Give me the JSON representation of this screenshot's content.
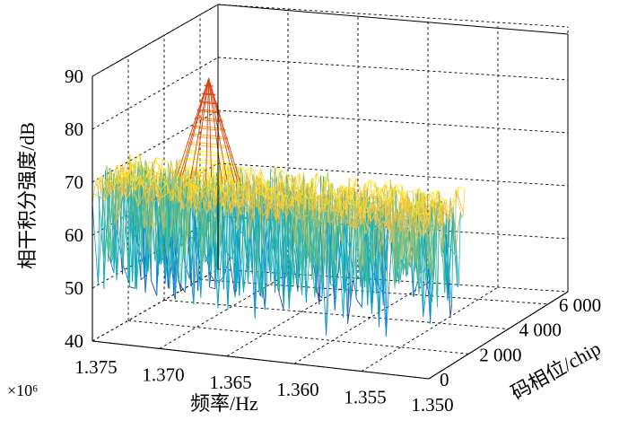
{
  "chart_data": {
    "type": "surface-3d",
    "title": "",
    "x_axis": {
      "label": "频率/Hz",
      "ticks": [
        "1.375",
        "1.370",
        "1.365",
        "1.360",
        "1.355",
        "1.350"
      ],
      "tick_values": [
        1375000,
        1370000,
        1365000,
        1360000,
        1355000,
        1350000
      ],
      "multiplier": "×10⁶",
      "range": [
        1375000,
        1350000
      ]
    },
    "y_axis": {
      "label": "码相位/chip",
      "ticks": [
        "0",
        "2 000",
        "4 000",
        "6 000"
      ],
      "tick_values": [
        0,
        2000,
        4000,
        6000
      ],
      "range": [
        0,
        7000
      ]
    },
    "z_axis": {
      "label": "相干积分强度/dB",
      "ticks": [
        "40",
        "50",
        "60",
        "70",
        "80",
        "90"
      ],
      "tick_values": [
        40,
        50,
        60,
        70,
        80,
        90
      ],
      "range": [
        40,
        90
      ]
    },
    "grid": true,
    "colormap": "parula",
    "noise_floor": {
      "min_db": 51,
      "max_db": 72
    },
    "peak": {
      "frequency_hz": 1368000,
      "code_phase_chip": 4300,
      "value_db": 89
    }
  }
}
